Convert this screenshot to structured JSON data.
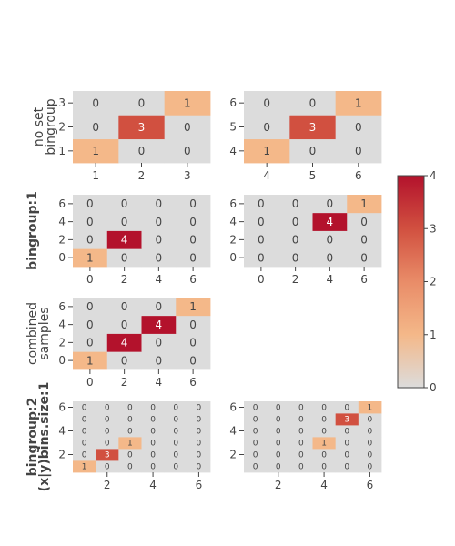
{
  "chart_data": {
    "type": "heatmap",
    "colorscale": [
      "#dcdcdc",
      "#f4b889",
      "#e98c68",
      "#d15040",
      "#b3122c"
    ],
    "colorbar": {
      "range": [
        0,
        4
      ],
      "ticks": [
        "0",
        "1",
        "2",
        "3",
        "4"
      ]
    },
    "rows": [
      {
        "label": [
          "no set",
          "bingroup"
        ],
        "bold": false
      },
      {
        "label": [
          "bingroup:1"
        ],
        "bold": true
      },
      {
        "label": [
          "combined",
          "samples"
        ],
        "bold": false
      },
      {
        "label": [
          "bingroup:2",
          "(x|y)bins.size:1"
        ],
        "bold": true
      }
    ],
    "panels": [
      {
        "id": "p1",
        "row": 0,
        "col": 0,
        "x": [
          1,
          2,
          3
        ],
        "y": [
          1,
          2,
          3
        ],
        "xticks": [
          "1",
          "2",
          "3"
        ],
        "yticks": [
          "1",
          "2",
          "3"
        ],
        "z": [
          [
            1,
            0,
            0
          ],
          [
            0,
            3,
            0
          ],
          [
            0,
            0,
            1
          ]
        ]
      },
      {
        "id": "p2",
        "row": 0,
        "col": 1,
        "x": [
          4,
          5,
          6
        ],
        "y": [
          4,
          5,
          6
        ],
        "xticks": [
          "4",
          "5",
          "6"
        ],
        "yticks": [
          "4",
          "5",
          "6"
        ],
        "z": [
          [
            1,
            0,
            0
          ],
          [
            0,
            3,
            0
          ],
          [
            0,
            0,
            1
          ]
        ]
      },
      {
        "id": "p3",
        "row": 1,
        "col": 0,
        "x": [
          0,
          2,
          4,
          6
        ],
        "y": [
          0,
          2,
          4,
          6
        ],
        "xticks": [
          "0",
          "2",
          "4",
          "6"
        ],
        "yticks": [
          "0",
          "2",
          "4",
          "6"
        ],
        "z": [
          [
            1,
            0,
            0,
            0
          ],
          [
            0,
            4,
            0,
            0
          ],
          [
            0,
            0,
            0,
            0
          ],
          [
            0,
            0,
            0,
            0
          ]
        ]
      },
      {
        "id": "p4",
        "row": 1,
        "col": 1,
        "x": [
          0,
          2,
          4,
          6
        ],
        "y": [
          0,
          2,
          4,
          6
        ],
        "xticks": [
          "0",
          "2",
          "4",
          "6"
        ],
        "yticks": [
          "0",
          "2",
          "4",
          "6"
        ],
        "z": [
          [
            0,
            0,
            0,
            0
          ],
          [
            0,
            0,
            0,
            0
          ],
          [
            0,
            0,
            4,
            0
          ],
          [
            0,
            0,
            0,
            1
          ]
        ]
      },
      {
        "id": "p5",
        "row": 2,
        "col": 0,
        "x": [
          0,
          2,
          4,
          6
        ],
        "y": [
          0,
          2,
          4,
          6
        ],
        "xticks": [
          "0",
          "2",
          "4",
          "6"
        ],
        "yticks": [
          "0",
          "2",
          "4",
          "6"
        ],
        "z": [
          [
            1,
            0,
            0,
            0
          ],
          [
            0,
            4,
            0,
            0
          ],
          [
            0,
            0,
            4,
            0
          ],
          [
            0,
            0,
            0,
            1
          ]
        ]
      },
      {
        "id": "p6",
        "row": 3,
        "col": 0,
        "x": [
          1,
          2,
          3,
          4,
          5,
          6
        ],
        "y": [
          1,
          2,
          3,
          4,
          5,
          6
        ],
        "xticks": [
          "2",
          "4",
          "6"
        ],
        "yticks": [
          "2",
          "4",
          "6"
        ],
        "xtickvals": [
          2,
          4,
          6
        ],
        "ytickvals": [
          2,
          4,
          6
        ],
        "z": [
          [
            1,
            0,
            0,
            0,
            0,
            0
          ],
          [
            0,
            3,
            0,
            0,
            0,
            0
          ],
          [
            0,
            0,
            1,
            0,
            0,
            0
          ],
          [
            0,
            0,
            0,
            0,
            0,
            0
          ],
          [
            0,
            0,
            0,
            0,
            0,
            0
          ],
          [
            0,
            0,
            0,
            0,
            0,
            0
          ]
        ]
      },
      {
        "id": "p7",
        "row": 3,
        "col": 1,
        "x": [
          1,
          2,
          3,
          4,
          5,
          6
        ],
        "y": [
          1,
          2,
          3,
          4,
          5,
          6
        ],
        "xticks": [
          "2",
          "4",
          "6"
        ],
        "yticks": [
          "2",
          "4",
          "6"
        ],
        "xtickvals": [
          2,
          4,
          6
        ],
        "ytickvals": [
          2,
          4,
          6
        ],
        "z": [
          [
            0,
            0,
            0,
            0,
            0,
            0
          ],
          [
            0,
            0,
            0,
            0,
            0,
            0
          ],
          [
            0,
            0,
            0,
            1,
            0,
            0
          ],
          [
            0,
            0,
            0,
            0,
            0,
            0
          ],
          [
            0,
            0,
            0,
            0,
            3,
            0
          ],
          [
            0,
            0,
            0,
            0,
            0,
            1
          ]
        ]
      }
    ]
  }
}
